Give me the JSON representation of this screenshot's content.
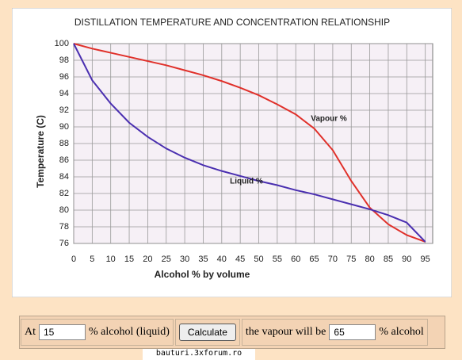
{
  "chart_data": {
    "type": "line",
    "title": "DISTILLATION TEMPERATURE AND CONCENTRATION RELATIONSHIP",
    "x_label": "Alcohol % by volume",
    "y_label": "Temperature (C)",
    "x": [
      0,
      5,
      10,
      15,
      20,
      25,
      30,
      35,
      40,
      45,
      50,
      55,
      60,
      65,
      70,
      75,
      80,
      85,
      90,
      95
    ],
    "series": [
      {
        "name": "Vapour %",
        "color": "#e0302a",
        "values": [
          100,
          99.4,
          98.9,
          98.4,
          97.9,
          97.4,
          96.8,
          96.2,
          95.5,
          94.7,
          93.8,
          92.7,
          91.5,
          89.8,
          87.2,
          83.5,
          80.3,
          78.3,
          77,
          76.2
        ]
      },
      {
        "name": "Liquid %",
        "color": "#4a2fb0",
        "values": [
          100,
          95.6,
          92.8,
          90.5,
          88.8,
          87.4,
          86.3,
          85.4,
          84.7,
          84.1,
          83.5,
          83,
          82.4,
          81.9,
          81.3,
          80.7,
          80.1,
          79.4,
          78.5,
          76.2
        ]
      }
    ],
    "xlim": [
      0,
      97
    ],
    "ylim": [
      76,
      100
    ],
    "xticks": [
      0,
      5,
      10,
      15,
      20,
      25,
      30,
      35,
      40,
      45,
      50,
      55,
      60,
      65,
      70,
      75,
      80,
      85,
      90,
      95
    ],
    "yticks": [
      76,
      78,
      80,
      82,
      84,
      86,
      88,
      90,
      92,
      94,
      96,
      98,
      100
    ],
    "grid": true
  },
  "form": {
    "at": "At",
    "liquid_input": "15",
    "liquid_label": "% alcohol (liquid)",
    "button": "Calculate",
    "vapour_text": "the vapour will be",
    "vapour_input": "65",
    "vapour_label": "% alcohol"
  },
  "footer": "bauturi.3xforum.ro"
}
